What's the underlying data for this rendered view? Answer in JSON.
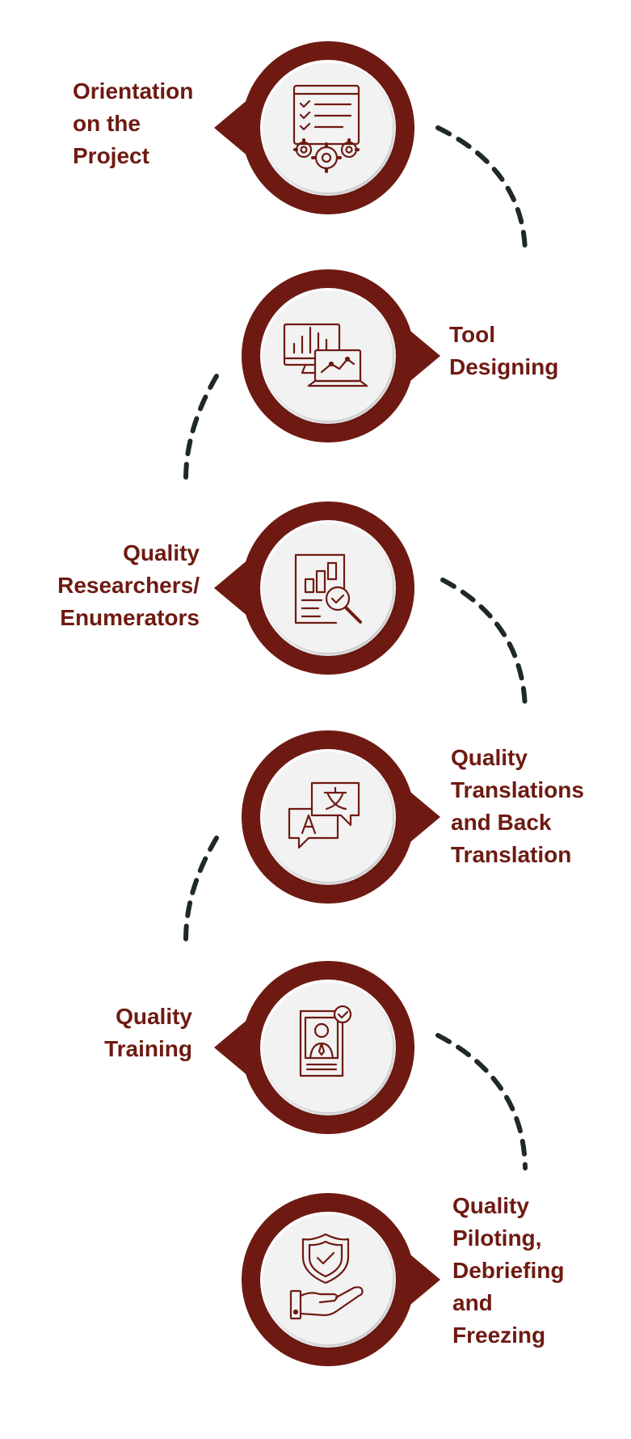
{
  "colors": {
    "maroon": "#6e1a12",
    "inner_bg": "#f2f2f2",
    "ring_white": "#ffffff",
    "dash": "#1f2a25"
  },
  "steps": [
    {
      "lines": [
        "Orientation",
        "on the",
        "Project"
      ],
      "icon": "checklist-gears-icon"
    },
    {
      "lines": [
        "Tool",
        "Designing"
      ],
      "icon": "computer-analytics-icon"
    },
    {
      "lines": [
        "Quality",
        "Researchers/",
        "Enumerators"
      ],
      "icon": "report-magnifier-icon"
    },
    {
      "lines": [
        "Quality",
        "Translations",
        "and Back",
        "Translation"
      ],
      "icon": "translation-bubbles-icon"
    },
    {
      "lines": [
        "Quality",
        "Training"
      ],
      "icon": "trainer-presentation-icon"
    },
    {
      "lines": [
        "Quality",
        "Piloting,",
        "Debriefing",
        "and",
        "Freezing"
      ],
      "icon": "shield-hand-icon"
    }
  ]
}
